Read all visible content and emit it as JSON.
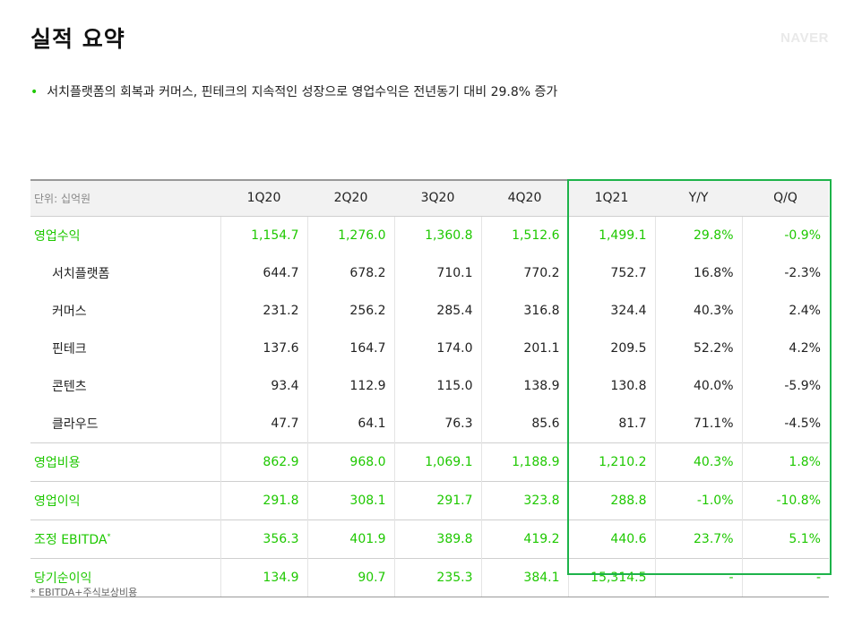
{
  "title": "실적 요약",
  "logo": "NAVER",
  "bullet": "서치플랫폼의 회복과 커머스, 핀테크의 지속적인 성장으로 영업수익은 전년동기 대비 29.8% 증가",
  "table": {
    "unit": "단위: 십억원",
    "headers": [
      "1Q20",
      "2Q20",
      "3Q20",
      "4Q20",
      "1Q21",
      "Y/Y",
      "Q/Q"
    ],
    "rows": [
      {
        "label": "영업수익",
        "values": [
          "1,154.7",
          "1,276.0",
          "1,360.8",
          "1,512.6",
          "1,499.1",
          "29.8%",
          "-0.9%"
        ]
      },
      {
        "label": "서치플랫폼",
        "values": [
          "644.7",
          "678.2",
          "710.1",
          "770.2",
          "752.7",
          "16.8%",
          "-2.3%"
        ]
      },
      {
        "label": "커머스",
        "values": [
          "231.2",
          "256.2",
          "285.4",
          "316.8",
          "324.4",
          "40.3%",
          "2.4%"
        ]
      },
      {
        "label": "핀테크",
        "values": [
          "137.6",
          "164.7",
          "174.0",
          "201.1",
          "209.5",
          "52.2%",
          "4.2%"
        ]
      },
      {
        "label": "콘텐츠",
        "values": [
          "93.4",
          "112.9",
          "115.0",
          "138.9",
          "130.8",
          "40.0%",
          "-5.9%"
        ]
      },
      {
        "label": "클라우드",
        "values": [
          "47.7",
          "64.1",
          "76.3",
          "85.6",
          "81.7",
          "71.1%",
          "-4.5%"
        ]
      },
      {
        "label": "영업비용",
        "values": [
          "862.9",
          "968.0",
          "1,069.1",
          "1,188.9",
          "1,210.2",
          "40.3%",
          "1.8%"
        ]
      },
      {
        "label": "영업이익",
        "values": [
          "291.8",
          "308.1",
          "291.7",
          "323.8",
          "288.8",
          "-1.0%",
          "-10.8%"
        ]
      },
      {
        "label": "조정 EBITDA",
        "sup": "*",
        "values": [
          "356.3",
          "401.9",
          "389.8",
          "419.2",
          "440.6",
          "23.7%",
          "5.1%"
        ]
      },
      {
        "label": "당기순이익",
        "values": [
          "134.9",
          "90.7",
          "235.3",
          "384.1",
          "15,314.5",
          "-",
          "-"
        ]
      }
    ]
  },
  "footnote": "* EBITDA+주식보상비용",
  "colors": {
    "accent_green": "#1ec800",
    "highlight_box": "#1eb34a"
  }
}
